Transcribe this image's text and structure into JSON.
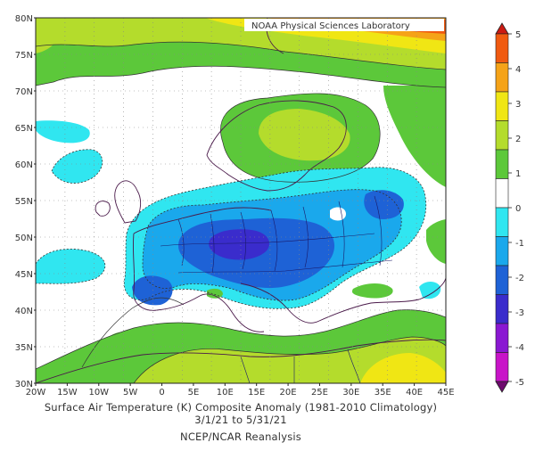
{
  "map": {
    "source_label": "NOAA Physical Sciences Laboratory",
    "lat_labels": [
      "80N",
      "75N",
      "70N",
      "65N",
      "60N",
      "55N",
      "50N",
      "45N",
      "40N",
      "35N",
      "30N"
    ],
    "lon_labels": [
      "20W",
      "15W",
      "10W",
      "5W",
      "0",
      "5E",
      "10E",
      "15E",
      "20E",
      "25E",
      "30E",
      "35E",
      "40E",
      "45E"
    ]
  },
  "colorbar": {
    "labels": [
      "5",
      "4",
      "3",
      "2",
      "1",
      "0",
      "-1",
      "-2",
      "-3",
      "-4",
      "-5"
    ],
    "colors": [
      "#cc1a12",
      "#f05a10",
      "#f5a318",
      "#f0e614",
      "#b4dc2c",
      "#5cc83a",
      "#ffffff",
      "#30e6f0",
      "#1aa8ec",
      "#1e62d6",
      "#3a2ccc",
      "#8a18d2",
      "#c814c8",
      "#6e0a6e"
    ]
  },
  "caption": {
    "line1": "Surface Air Temperature (K) Composite Anomaly (1981-2010 Climatology)",
    "line2": "3/1/21  to 5/31/21",
    "line3": "NCEP/NCAR Reanalysis"
  }
}
